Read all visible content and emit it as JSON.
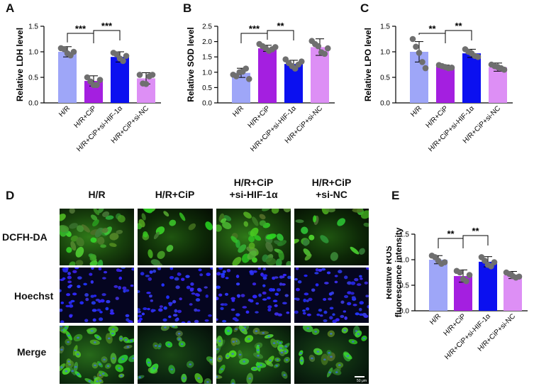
{
  "panels": {
    "A": "A",
    "B": "B",
    "C": "C",
    "D": "D",
    "E": "E"
  },
  "categories": [
    "H/R",
    "H/R+CiP",
    "H/R+CiP+si-HIF-1α",
    "H/R+CiP+si-NC"
  ],
  "colors": {
    "bar": [
      "#9ea6f8",
      "#a41fe0",
      "#0b10f0",
      "#dd8ff5"
    ],
    "point": "#6f6f6f",
    "axis": "#000000"
  },
  "chart_data": [
    {
      "id": "A",
      "type": "bar",
      "ylabel": "Relative LDH level",
      "categories": [
        "H/R",
        "H/R+CiP",
        "H/R+CiP+si-HIF-1α",
        "H/R+CiP+si-NC"
      ],
      "values": [
        1.0,
        0.43,
        0.9,
        0.48
      ],
      "errors": [
        0.1,
        0.1,
        0.1,
        0.11
      ],
      "points": [
        [
          1.07,
          1.05,
          0.97,
          0.93,
          1.0
        ],
        [
          0.5,
          0.42,
          0.35,
          0.35,
          0.45
        ],
        [
          0.98,
          0.95,
          0.87,
          0.82,
          0.92
        ],
        [
          0.55,
          0.38,
          0.37,
          0.52,
          0.55
        ]
      ],
      "ylim": [
        0,
        1.5
      ],
      "yticks": [
        0.0,
        0.5,
        1.0,
        1.5
      ],
      "sig": [
        {
          "from": 0,
          "to": 1,
          "label": "***"
        },
        {
          "from": 1,
          "to": 2,
          "label": "***"
        }
      ]
    },
    {
      "id": "B",
      "type": "bar",
      "ylabel": "Relative SOD level",
      "categories": [
        "H/R",
        "H/R+CiP",
        "H/R+CiP+si-HIF-1α",
        "H/R+CiP+si-NC"
      ],
      "values": [
        0.98,
        1.78,
        1.27,
        1.82
      ],
      "errors": [
        0.15,
        0.1,
        0.12,
        0.27
      ],
      "points": [
        [
          0.92,
          0.87,
          1.0,
          1.02,
          1.12,
          0.78
        ],
        [
          1.92,
          1.85,
          1.78,
          1.7,
          1.75,
          1.82
        ],
        [
          1.42,
          1.3,
          1.2,
          1.12,
          1.25,
          1.35
        ],
        [
          2.02,
          1.92,
          1.85,
          1.65,
          1.6,
          1.78
        ]
      ],
      "ylim": [
        0,
        2.5
      ],
      "yticks": [
        0.0,
        0.5,
        1.0,
        1.5,
        2.0,
        2.5
      ],
      "sig": [
        {
          "from": 0,
          "to": 1,
          "label": "***"
        },
        {
          "from": 1,
          "to": 2,
          "label": "**"
        }
      ]
    },
    {
      "id": "C",
      "type": "bar",
      "ylabel": "Relative LPO level",
      "categories": [
        "H/R",
        "H/R+CiP",
        "H/R+CiP+si-HIF-1α",
        "H/R+CiP+si-NC"
      ],
      "values": [
        1.0,
        0.71,
        0.97,
        0.7
      ],
      "errors": [
        0.2,
        0.03,
        0.08,
        0.08
      ],
      "points": [
        [
          1.25,
          1.1,
          0.98,
          0.8,
          0.68
        ],
        [
          0.74,
          0.72,
          0.7,
          0.68,
          0.69
        ],
        [
          1.05,
          1.0,
          0.97,
          0.92,
          0.9
        ],
        [
          0.75,
          0.72,
          0.7,
          0.68,
          0.65
        ]
      ],
      "ylim": [
        0,
        1.5
      ],
      "yticks": [
        0.0,
        0.5,
        1.0,
        1.5
      ],
      "sig": [
        {
          "from": 0,
          "to": 1,
          "label": "**"
        },
        {
          "from": 1,
          "to": 2,
          "label": "**"
        }
      ]
    },
    {
      "id": "E",
      "type": "bar",
      "ylabel": "Relative ROS fluorescence intensity",
      "categories": [
        "H/R",
        "H/R+CiP",
        "H/R+CiP+si-HIF-1α",
        "H/R+CiP+si-NC"
      ],
      "values": [
        1.0,
        0.68,
        0.96,
        0.7
      ],
      "errors": [
        0.08,
        0.12,
        0.1,
        0.07
      ],
      "points": [
        [
          1.08,
          1.05,
          0.98,
          0.92,
          0.95
        ],
        [
          0.78,
          0.75,
          0.62,
          0.58,
          0.7
        ],
        [
          1.05,
          0.98,
          0.9,
          0.87,
          0.95
        ],
        [
          0.75,
          0.72,
          0.68,
          0.65,
          0.67
        ]
      ],
      "ylim": [
        0,
        1.5
      ],
      "yticks": [
        0.0,
        0.5,
        1.0,
        1.5
      ],
      "sig": [
        {
          "from": 0,
          "to": 1,
          "label": "**"
        },
        {
          "from": 1,
          "to": 2,
          "label": "**"
        }
      ]
    }
  ],
  "micrograph": {
    "column_headers": [
      [
        "H/R"
      ],
      [
        "H/R+CiP"
      ],
      [
        "H/R+CiP",
        "+si-HIF-1α"
      ],
      [
        "H/R+CiP",
        "+si-NC"
      ]
    ],
    "row_labels": [
      "DCFH-DA",
      "Hoechst",
      "Merge"
    ],
    "scale_bar": "50 μm"
  }
}
